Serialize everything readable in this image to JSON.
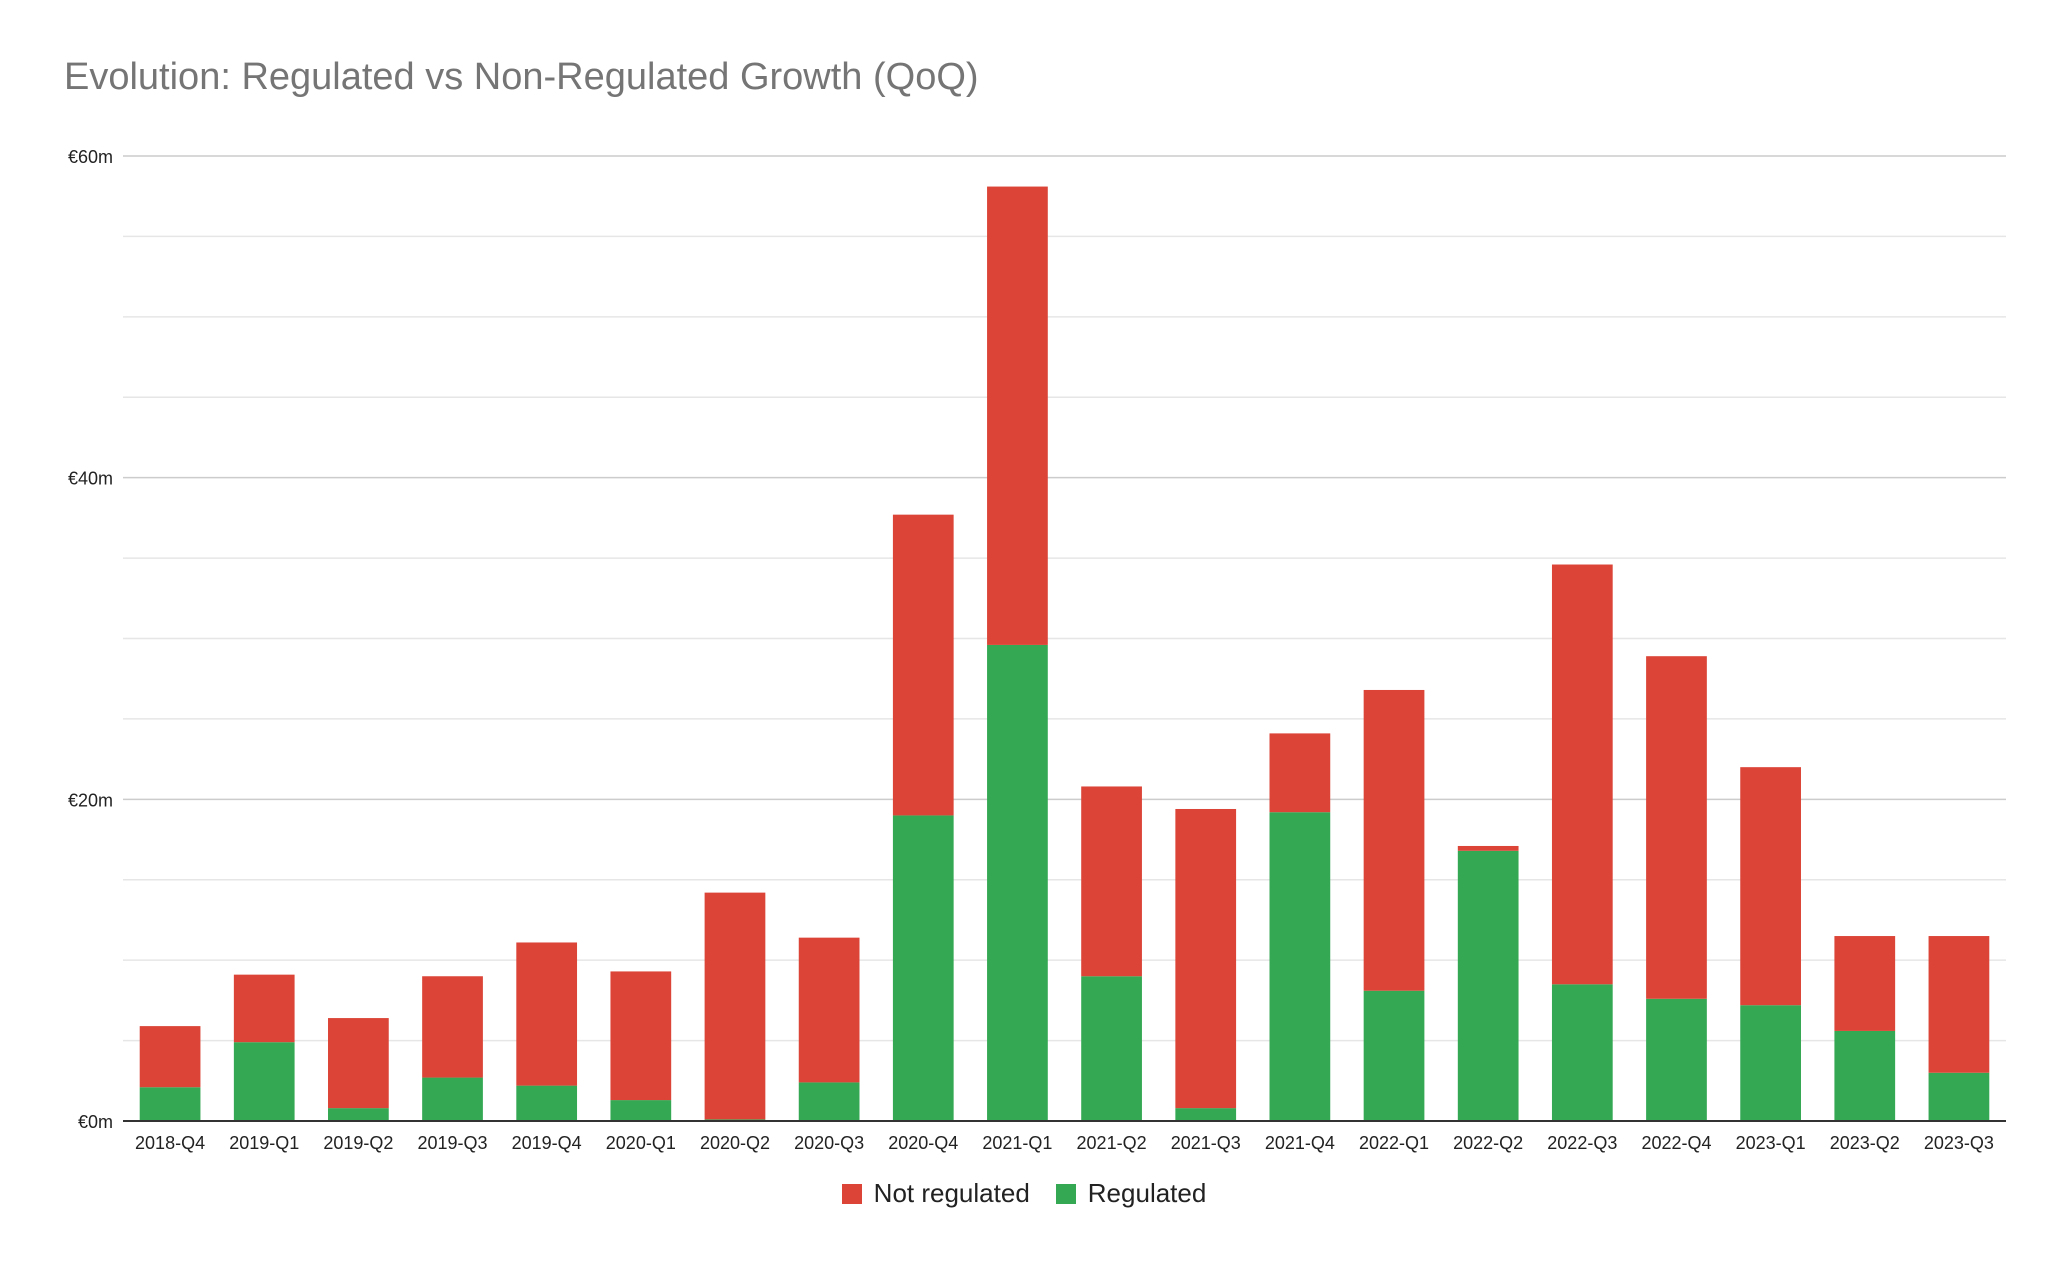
{
  "chart_data": {
    "type": "bar",
    "stacked": true,
    "title": "Evolution: Regulated vs Non-Regulated Growth (QoQ)",
    "xlabel": "",
    "ylabel": "",
    "ylim": [
      0,
      60
    ],
    "y_ticks": [
      {
        "value": 0,
        "label": "€0m"
      },
      {
        "value": 20,
        "label": "€20m"
      },
      {
        "value": 40,
        "label": "€40m"
      },
      {
        "value": 60,
        "label": "€60m"
      }
    ],
    "minor_gridlines": [
      5,
      10,
      15,
      25,
      30,
      35,
      45,
      50,
      55
    ],
    "grid": true,
    "legend_position": "bottom",
    "categories": [
      "2018-Q4",
      "2019-Q1",
      "2019-Q2",
      "2019-Q3",
      "2019-Q4",
      "2020-Q1",
      "2020-Q2",
      "2020-Q3",
      "2020-Q4",
      "2021-Q1",
      "2021-Q2",
      "2021-Q3",
      "2021-Q4",
      "2022-Q1",
      "2022-Q2",
      "2022-Q3",
      "2022-Q4",
      "2023-Q1",
      "2023-Q2",
      "2023-Q3"
    ],
    "series": [
      {
        "name": "Regulated",
        "color": "#34a853",
        "values": [
          2.1,
          4.9,
          0.8,
          2.7,
          2.2,
          1.3,
          0.1,
          2.4,
          19.0,
          29.6,
          9.0,
          0.8,
          19.2,
          8.1,
          16.8,
          8.5,
          7.6,
          7.2,
          5.6,
          3.0
        ]
      },
      {
        "name": "Not regulated",
        "color": "#db4437",
        "values": [
          3.8,
          4.2,
          5.6,
          6.3,
          8.9,
          8.0,
          14.1,
          9.0,
          18.7,
          28.5,
          11.8,
          18.6,
          4.9,
          18.7,
          0.3,
          26.1,
          21.3,
          14.8,
          5.9,
          8.5
        ]
      }
    ],
    "legend": [
      {
        "name": "Not regulated",
        "color": "#db4437"
      },
      {
        "name": "Regulated",
        "color": "#34a853"
      }
    ]
  }
}
